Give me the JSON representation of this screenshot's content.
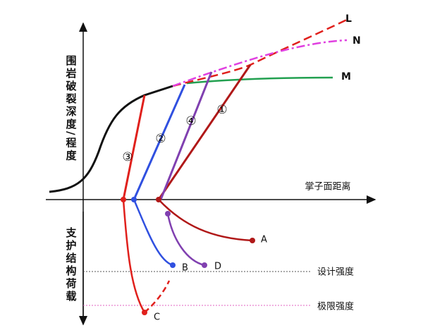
{
  "axes": {
    "y_upper_label": "围岩破裂深度/程度",
    "y_lower_label": "支护结构荷载",
    "x_label": "掌子面距离"
  },
  "curves": {
    "L": "L",
    "N": "N",
    "M": "M",
    "c1": "①",
    "c2": "②",
    "c3": "③",
    "c4": "④"
  },
  "points": {
    "A": "A",
    "B": "B",
    "C": "C",
    "D": "D"
  },
  "levels": {
    "design": "设计强度",
    "ultimate": "极限强度"
  }
}
